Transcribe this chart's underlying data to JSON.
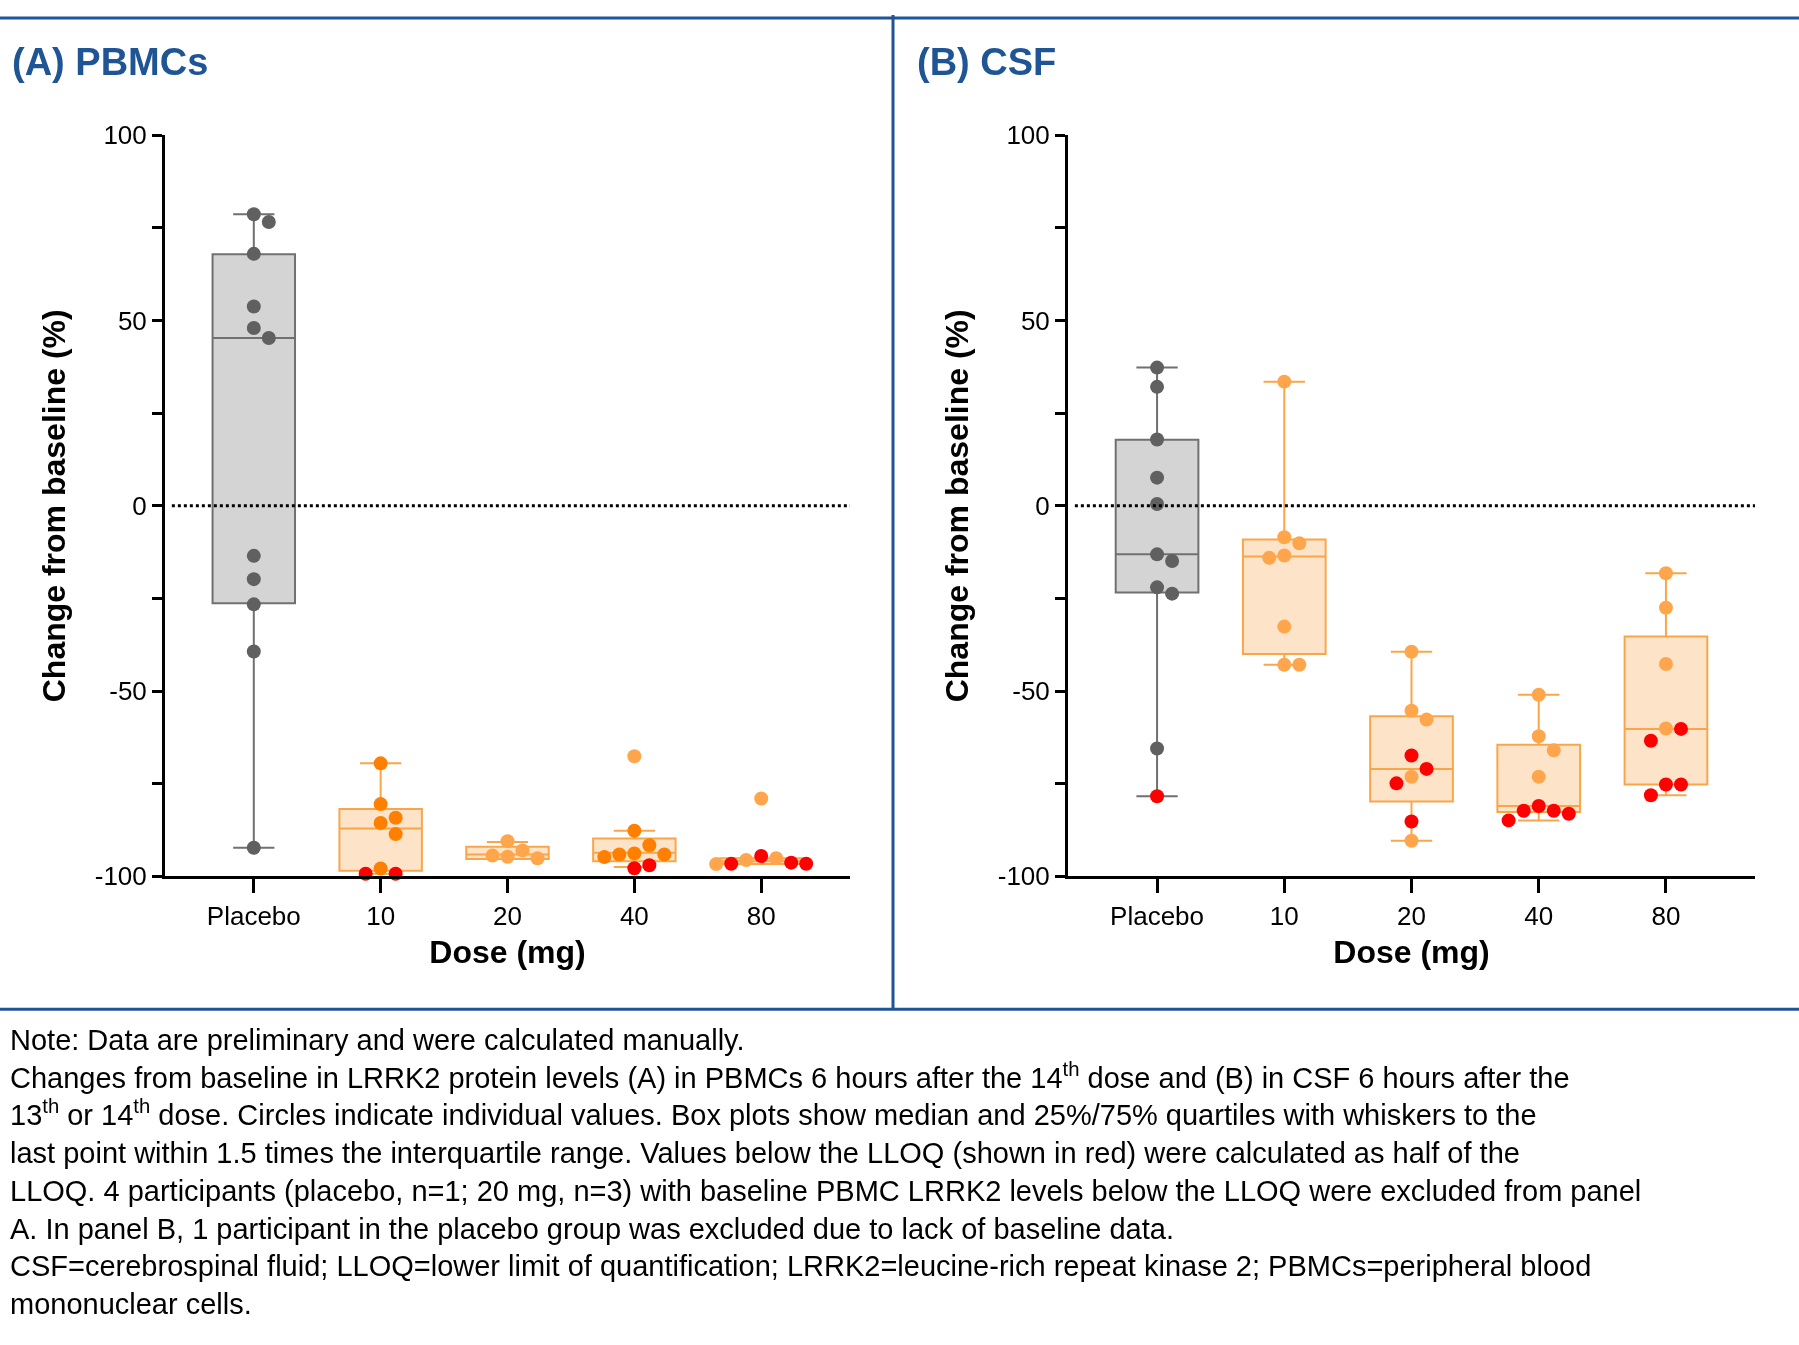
{
  "chart_data": [
    {
      "type": "box",
      "title": "(A) PBMCs",
      "xlabel": "Dose (mg)",
      "ylabel": "Change from baseline (%)",
      "categories": [
        "Placebo",
        "10",
        "20",
        "40",
        "80"
      ],
      "ylim": [
        -100,
        100
      ],
      "yticks": [
        -100,
        {
          "value": -75,
          "label": null
        },
        -50,
        {
          "value": -25,
          "label": null
        },
        0,
        {
          "value": 25,
          "label": null
        },
        50,
        {
          "value": 75,
          "label": null
        },
        100
      ],
      "ref_lines": [
        {
          "axis": "y",
          "value": 0,
          "line_style": "dotted",
          "color": "#000000"
        }
      ],
      "series": [
        {
          "colors": [
            "#707070",
            "#f9a64a",
            "#f9a64a",
            "#f9a64a",
            "#f9a64a"
          ],
          "boxes": [
            {
              "low": -92.3,
              "q1": -26.3,
              "median": 45.3,
              "q3": 67.9,
              "high": 78.7
            },
            {
              "low": -99.3,
              "q1": -98.5,
              "median": -87.1,
              "q3": -81.8,
              "high": -69.5
            },
            {
              "low": -95.3,
              "q1": -95.3,
              "median": -94.1,
              "q3": -92,
              "high": -90.7
            },
            {
              "low": -97.5,
              "q1": -95.9,
              "median": -93.6,
              "q3": -89.8,
              "high": -87.7
            },
            {
              "low": -96.7,
              "q1": -96.7,
              "median": -95.9,
              "q3": -95.1,
              "high": -95.1
            }
          ]
        },
        {
          "type": "scatter",
          "color": "#606060",
          "x": [
            "Placebo",
            "Placebo",
            "Placebo",
            "Placebo",
            "Placebo",
            "Placebo",
            "Placebo",
            "Placebo",
            "Placebo",
            "Placebo",
            "Placebo"
          ],
          "values": [
            78.7,
            76.6,
            68,
            53.8,
            48,
            45.3,
            -13.5,
            -19.8,
            -26.6,
            -39.3,
            -92.3
          ]
        },
        {
          "type": "scatter",
          "color": "#ff7f00",
          "x": [
            "10",
            "10",
            "10",
            "10",
            "10",
            "10",
            "40",
            "40",
            "40",
            "40",
            "40",
            "40"
          ],
          "values": [
            -69.5,
            -80.5,
            -84.2,
            -85.6,
            -88.6,
            -97.9,
            -87.7,
            -94.1,
            -94.1,
            -93.8,
            -91.6,
            -94.8
          ]
        },
        {
          "type": "scatter",
          "color": "#ffa64d",
          "x": [
            "20",
            "20",
            "20",
            "20",
            "20",
            "40",
            "80",
            "80",
            "80",
            "80"
          ],
          "values": [
            -90.5,
            -93,
            -95.1,
            -94.7,
            -94.4,
            -67.6,
            -79,
            -95.1,
            -96.7,
            -95.6
          ]
        },
        {
          "type": "scatter",
          "color": "#ff0000",
          "x": [
            "10",
            "10",
            "40",
            "40",
            "80",
            "80",
            "80",
            "80"
          ],
          "values": [
            -99.3,
            -99.3,
            -97.8,
            -97,
            -94.5,
            -96.6,
            -96.6,
            -96.3
          ]
        }
      ],
      "annotations": [
        "Note: Data are preliminary and were calculated manually.",
        "Changes from baseline in LRRK2 protein levels (A) in PBMCs 6 hours after the 14$^{th}$ dose and (B) in CSF 6 hours after the 13$^{th}$ or 14$^{th}$ dose. Circles indicate individual values. Box plots show median and 25%/75% quartiles with whiskers to the last point within 1.5 times the interquartile range. Values below the LLOQ (shown in red) were calculated as half of the LLOQ. 4 participants (placebo, n=1; 20 mg, n=3) with baseline PBMC LRRK2 levels below the LLOQ were excluded from panel A. In panel B, 1 participant in the placebo group was excluded due to lack of baseline data.",
        "CSF=cerebrospinal fluid; LLOQ=lower limit of quantification; LRRK2=leucine-rich repeat kinase 2; PBMCs=peripheral blood mononuclear cells."
      ]
    },
    {
      "type": "box",
      "title": "(B) CSF",
      "xlabel": "Dose (mg)",
      "ylabel": "Change from baseline (%)",
      "categories": [
        "Placebo",
        "10",
        "20",
        "40",
        "80"
      ],
      "ylim": [
        -100,
        100
      ],
      "yticks": [
        -100,
        {
          "value": -75,
          "label": null
        },
        -50,
        {
          "value": -25,
          "label": null
        },
        0,
        {
          "value": 25,
          "label": null
        },
        50,
        {
          "value": 75,
          "label": null
        },
        100
      ],
      "ref_lines": [
        {
          "axis": "y",
          "value": 0,
          "line_style": "dotted",
          "color": "#000000"
        }
      ],
      "series": [
        {
          "colors": [
            "#707070",
            "#f9a64a",
            "#f9a64a",
            "#f9a64a",
            "#f9a64a"
          ],
          "boxes": [
            {
              "low": -78.4,
              "q1": -23.4,
              "median": -13.1,
              "q3": 17.8,
              "high": 37.3
            },
            {
              "low": -42.9,
              "q1": -40,
              "median": -13.7,
              "q3": -9.1,
              "high": 33.5
            },
            {
              "low": -90.4,
              "q1": -79.8,
              "median": -71,
              "q3": -56.8,
              "high": -39.4
            },
            {
              "low": -84.9,
              "q1": -82.6,
              "median": -81,
              "q3": -64.5,
              "high": -51
            },
            {
              "low": -78.1,
              "q1": -75.2,
              "median": -60.2,
              "q3": -35.3,
              "high": -18.2
            }
          ]
        },
        {
          "type": "scatter",
          "color": "#606060",
          "x": [
            "Placebo",
            "Placebo",
            "Placebo",
            "Placebo",
            "Placebo",
            "Placebo",
            "Placebo",
            "Placebo",
            "Placebo",
            "Placebo"
          ],
          "values": [
            37.3,
            32.1,
            17.9,
            7.6,
            0.5,
            -13.1,
            -14.9,
            -22,
            -23.7,
            -65.5
          ]
        },
        {
          "type": "scatter",
          "color": "#ffa64d",
          "x": [
            "10",
            "10",
            "10",
            "10",
            "10",
            "10",
            "10",
            "10",
            "20",
            "20",
            "20",
            "20",
            "20",
            "40",
            "40",
            "40",
            "40",
            "80",
            "80",
            "80",
            "80"
          ],
          "values": [
            33.5,
            -8.5,
            -10.1,
            -13.4,
            -14,
            -32.6,
            -42.9,
            -42.9,
            -39.4,
            -55.3,
            -57.7,
            -73.1,
            -90.4,
            -51,
            -62.2,
            -66,
            -73.1,
            -18.2,
            -27.5,
            -42.7,
            -60.1
          ]
        },
        {
          "type": "scatter",
          "color": "#ff0000",
          "x": [
            "Placebo",
            "20",
            "20",
            "20",
            "20",
            "40",
            "40",
            "40",
            "40",
            "40",
            "80",
            "80",
            "80",
            "80",
            "80"
          ],
          "values": [
            -78.4,
            -67.4,
            -71,
            -74.9,
            -85.2,
            -81,
            -84.9,
            -82.3,
            -83.1,
            -82.3,
            -60.2,
            -63.4,
            -75.2,
            -75.2,
            -78.1
          ]
        }
      ]
    }
  ]
}
